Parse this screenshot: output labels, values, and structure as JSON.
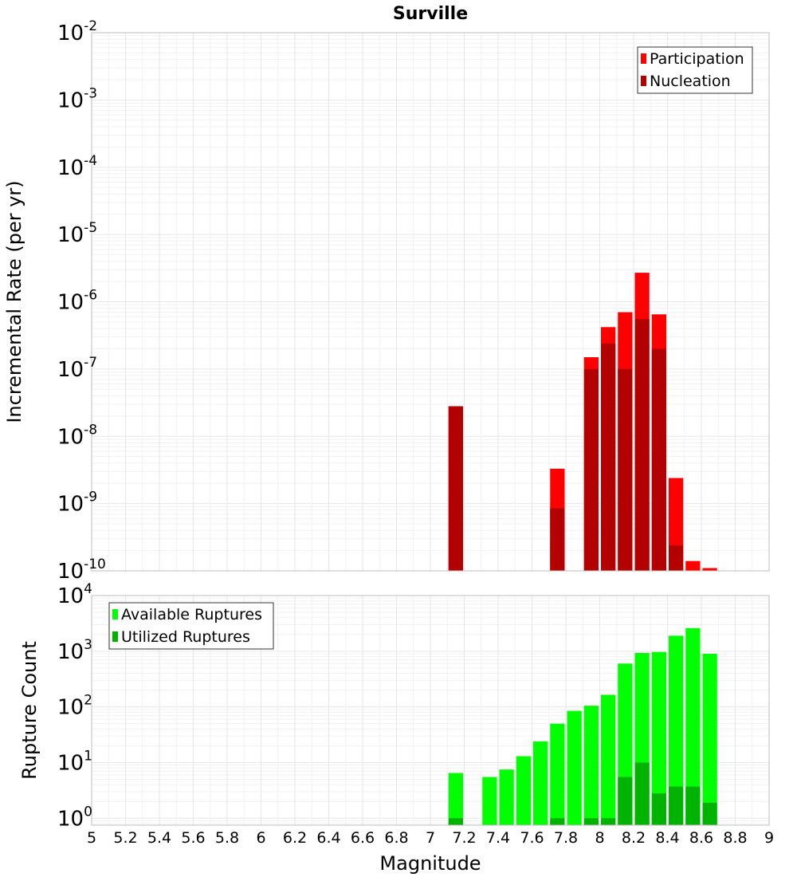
{
  "chart_data": [
    {
      "type": "bar",
      "title": "Surville",
      "xlabel": "",
      "ylabel": "Incremental Rate (per yr)",
      "yscale": "log",
      "ylim": [
        1e-10,
        0.01
      ],
      "xlim": [
        5,
        9
      ],
      "y_tick_exponents": [
        "-10",
        "-9",
        "-8",
        "-7",
        "-6",
        "-5",
        "-4",
        "-3",
        "-2"
      ],
      "legend_position": "top-right",
      "grid": true,
      "series": [
        {
          "name": "Participation",
          "color": "#ff0000",
          "x": [
            7.15,
            7.75,
            7.95,
            8.05,
            8.15,
            8.25,
            8.35,
            8.45,
            8.55,
            8.65
          ],
          "values": [
            2.8e-08,
            3.3e-09,
            1.5e-07,
            4.2e-07,
            7e-07,
            2.7e-06,
            6.5e-07,
            2.4e-09,
            1.4e-10,
            1.1e-10
          ]
        },
        {
          "name": "Nucleation",
          "color": "#b30000",
          "x": [
            7.15,
            7.75,
            7.95,
            8.05,
            8.15,
            8.25,
            8.35,
            8.45
          ],
          "values": [
            2.8e-08,
            8.5e-10,
            1e-07,
            2.4e-07,
            1e-07,
            5.5e-07,
            2e-07,
            2.4e-10
          ]
        }
      ]
    },
    {
      "type": "bar",
      "title": "",
      "xlabel": "Magnitude",
      "ylabel": "Rupture Count",
      "yscale": "log",
      "ylim": [
        0.75,
        10000
      ],
      "xlim": [
        5,
        9
      ],
      "y_tick_exponents": [
        "0",
        "1",
        "2",
        "3",
        "4"
      ],
      "x_ticks": [
        "5",
        "5.2",
        "5.4",
        "5.6",
        "5.8",
        "6",
        "6.2",
        "6.4",
        "6.6",
        "6.8",
        "7",
        "7.2",
        "7.4",
        "7.6",
        "7.8",
        "8",
        "8.2",
        "8.4",
        "8.6",
        "8.8",
        "9"
      ],
      "legend_position": "top-left",
      "grid": true,
      "series": [
        {
          "name": "Available Ruptures",
          "color": "#00ff00",
          "x": [
            7.15,
            7.35,
            7.45,
            7.55,
            7.65,
            7.75,
            7.85,
            7.95,
            8.05,
            8.15,
            8.25,
            8.35,
            8.45,
            8.55,
            8.65
          ],
          "values": [
            6.5,
            5.5,
            7.5,
            13,
            24,
            50,
            85,
            105,
            165,
            600,
            930,
            970,
            1900,
            2600,
            900
          ]
        },
        {
          "name": "Utilized Ruptures",
          "color": "#00b300",
          "x": [
            7.15,
            7.75,
            7.95,
            8.05,
            8.15,
            8.25,
            8.35,
            8.45,
            8.55,
            8.65
          ],
          "values": [
            1,
            1,
            1,
            1,
            5.5,
            10,
            2.8,
            3.7,
            3.7,
            1.9
          ]
        }
      ]
    }
  ]
}
